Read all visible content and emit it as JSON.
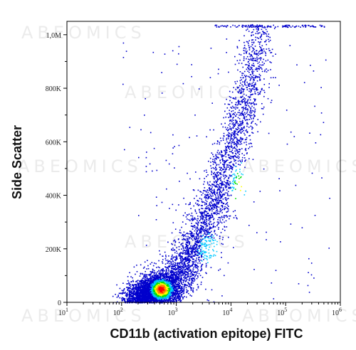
{
  "chart_data": {
    "type": "scatter",
    "title": "",
    "xlabel": "CD11b (activation epitope) FITC",
    "ylabel": "Side Scatter",
    "x_scale": "log",
    "xlim": [
      10,
      1000000
    ],
    "ylim": [
      0,
      1050000
    ],
    "x_ticks": [
      {
        "value": 10,
        "base": "10",
        "exp": "1"
      },
      {
        "value": 100,
        "base": "10",
        "exp": "2"
      },
      {
        "value": 1000,
        "base": "10",
        "exp": "3"
      },
      {
        "value": 10000,
        "base": "10",
        "exp": "4"
      },
      {
        "value": 100000,
        "base": "10",
        "exp": "5"
      },
      {
        "value": 1000000,
        "base": "10",
        "exp": "6"
      }
    ],
    "y_ticks": [
      {
        "value": 0,
        "label": "0"
      },
      {
        "value": 200000,
        "label": "200K"
      },
      {
        "value": 400000,
        "label": "400K"
      },
      {
        "value": 600000,
        "label": "600K"
      },
      {
        "value": 800000,
        "label": "800K"
      },
      {
        "value": 1000000,
        "label": "1,0M"
      }
    ],
    "grid": false,
    "color_scale": [
      "#0000cc",
      "#00c8ff",
      "#00e000",
      "#ffff00",
      "#ff8000",
      "#ff0000"
    ],
    "populations": [
      {
        "x_center": 500,
        "y_center": 50000,
        "density": "highest"
      },
      {
        "x_center": 15000,
        "y_center": 430000,
        "density": "medium"
      },
      {
        "x_center": 4000,
        "y_center": 200000,
        "density": "low"
      }
    ],
    "watermark": "ABEOMICS"
  }
}
